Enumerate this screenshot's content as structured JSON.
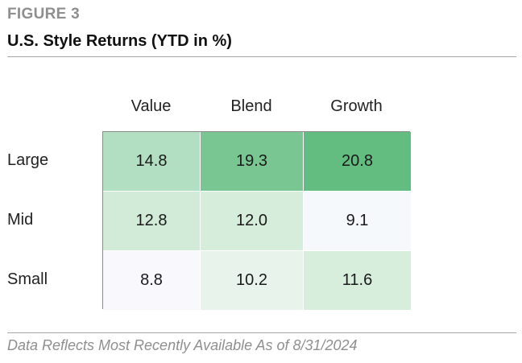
{
  "figure": {
    "label": "FIGURE 3",
    "title": "U.S. Style Returns (YTD in %)",
    "footnote": "Data Reflects Most Recently Available As of 8/31/2024"
  },
  "chart_data": {
    "type": "heatmap",
    "title": "U.S. Style Returns (YTD in %)",
    "columns": [
      "Value",
      "Blend",
      "Growth"
    ],
    "rows": [
      "Large",
      "Mid",
      "Small"
    ],
    "values": [
      [
        "14.8",
        "19.3",
        "20.8"
      ],
      [
        "12.8",
        "12.0",
        "9.1"
      ],
      [
        "8.8",
        "10.2",
        "11.6"
      ]
    ],
    "colors": [
      [
        "#b2dfc1",
        "#79c693",
        "#63bc80"
      ],
      [
        "#d1ebd8",
        "#d6eddc",
        "#f6f9fb"
      ],
      [
        "#f9f8fd",
        "#e8f4eb",
        "#d8eedd"
      ]
    ],
    "grid": true,
    "legend": "none"
  }
}
